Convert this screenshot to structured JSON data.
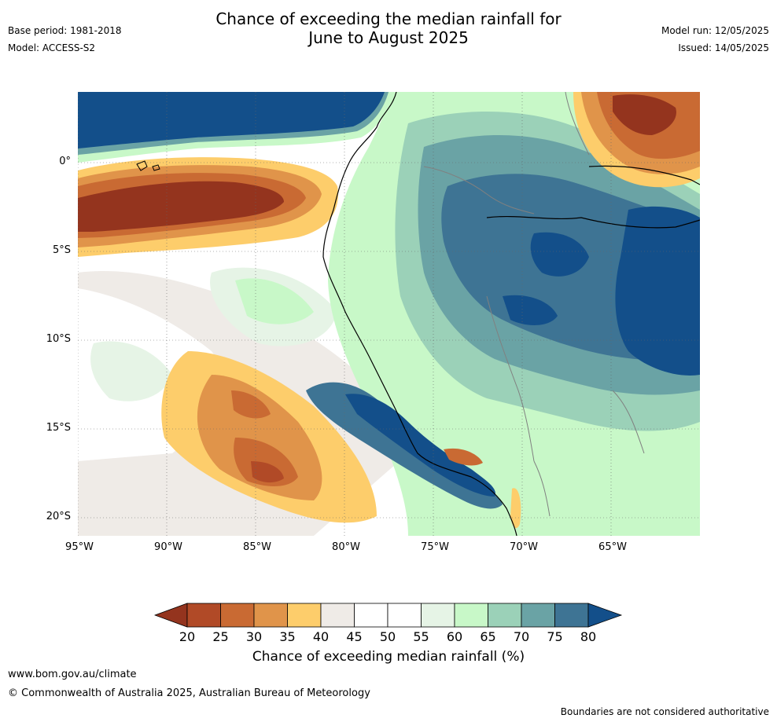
{
  "header": {
    "base_period": "Base period: 1981-2018",
    "model": "Model: ACCESS-S2",
    "title_line1": "Chance of exceeding the median rainfall for",
    "title_line2": "June to August 2025",
    "model_run": "Model run: 12/05/2025",
    "issued": "Issued: 14/05/2025"
  },
  "map": {
    "lat_labels": [
      "0°",
      "5°S",
      "10°S",
      "15°S",
      "20°S"
    ],
    "lon_labels": [
      "95°W",
      "90°W",
      "85°W",
      "80°W",
      "75°W",
      "70°W",
      "65°W"
    ],
    "lon_range": [
      -95,
      -60
    ],
    "lat_range": [
      -21,
      4
    ],
    "regions": [
      {
        "name": "north-pacific-wet",
        "category": "80+"
      },
      {
        "name": "equatorial-pacific-dry",
        "category": "<20"
      },
      {
        "name": "amazon-wet",
        "category": "75-80"
      },
      {
        "name": "peru-coast-wet",
        "category": "75-80"
      },
      {
        "name": "south-pacific-dry",
        "category": "25-30"
      },
      {
        "name": "venezuela-dry",
        "category": "<20"
      }
    ]
  },
  "colorbar": {
    "ticks": [
      "20",
      "25",
      "30",
      "35",
      "40",
      "45",
      "50",
      "55",
      "60",
      "65",
      "70",
      "75",
      "80"
    ],
    "colors": [
      "#94341e",
      "#b14a27",
      "#c96a33",
      "#e0944a",
      "#fdcd6b",
      "#efebe7",
      "#ffffff",
      "#ffffff",
      "#e6f4e6",
      "#c8f8c8",
      "#9bd1b8",
      "#6aa3a5",
      "#3e7494",
      "#134f8a"
    ],
    "title": "Chance of exceeding median rainfall (%)"
  },
  "footer": {
    "url": "www.bom.gov.au/climate",
    "copyright": "© Commonwealth of Australia 2025, Australian Bureau of Meteorology",
    "disclaimer": "Boundaries are not considered authoritative"
  }
}
